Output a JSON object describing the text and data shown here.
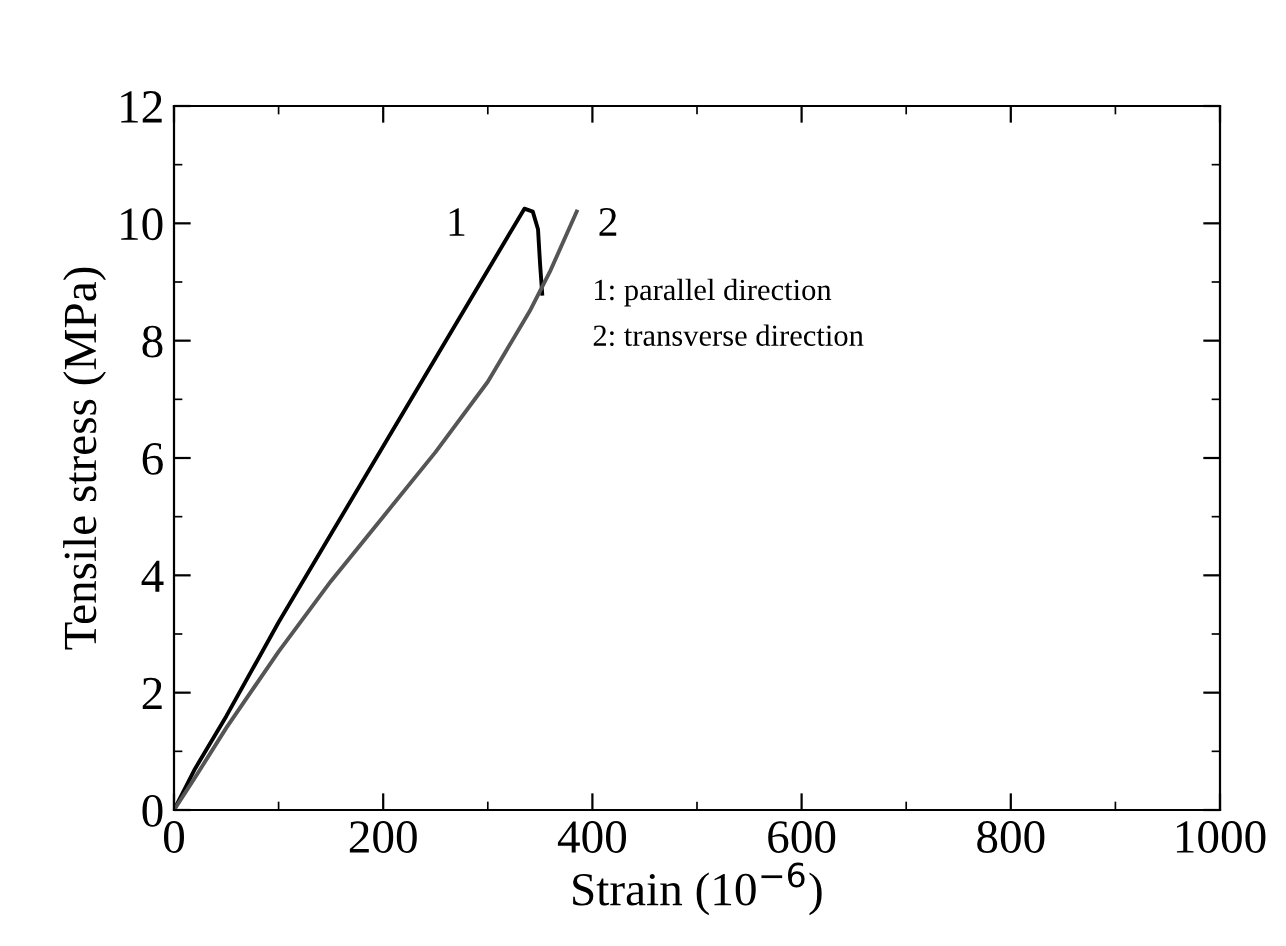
{
  "chart_data": {
    "type": "line",
    "xlabel": "Strain (10$^{−6}$)",
    "ylabel": "Tensile stress (MPa)",
    "xlim": [
      0,
      1000
    ],
    "ylim": [
      0,
      12
    ],
    "xticks": [
      0,
      200,
      400,
      600,
      800,
      1000
    ],
    "yticks": [
      0,
      2,
      4,
      6,
      8,
      10,
      12
    ],
    "grid": false,
    "legend": false,
    "series": [
      {
        "color": "#000000",
        "x": [
          0,
          20,
          50,
          100,
          150,
          200,
          250,
          300,
          320,
          335,
          343,
          348,
          350,
          352
        ],
        "values": [
          0,
          0.7,
          1.6,
          3.2,
          4.7,
          6.2,
          7.7,
          9.2,
          9.8,
          10.25,
          10.2,
          9.9,
          9.3,
          8.8
        ]
      },
      {
        "color": "#555555",
        "x": [
          0,
          20,
          50,
          100,
          150,
          200,
          250,
          300,
          340,
          360,
          385
        ],
        "values": [
          0,
          0.55,
          1.4,
          2.7,
          3.9,
          5.0,
          6.1,
          7.3,
          8.5,
          9.2,
          10.2
        ]
      }
    ],
    "annotations": [
      "1",
      "2",
      "1: parallel direction",
      "2: transverse direction"
    ]
  }
}
